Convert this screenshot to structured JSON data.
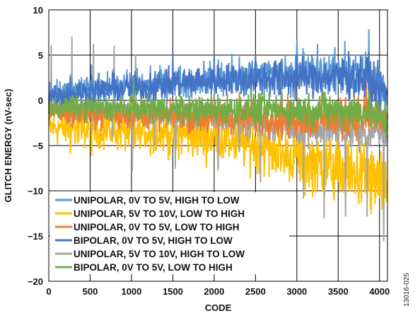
{
  "chart_data": {
    "type": "line",
    "figure_id": "13016-025",
    "xlabel": "CODE",
    "ylabel": "GLITCH ENERGY (nV-sec)",
    "xlim": [
      0,
      4096
    ],
    "ylim": [
      -20,
      10
    ],
    "x_ticks": [
      0,
      500,
      1000,
      1500,
      2000,
      2500,
      3000,
      3500,
      4000
    ],
    "y_ticks": [
      -20,
      -15,
      -10,
      -5,
      0,
      5,
      10
    ],
    "grid": true,
    "legend_position": "bottom-left",
    "x_sample": [
      0,
      256,
      512,
      768,
      1024,
      1280,
      1536,
      1792,
      2048,
      2304,
      2560,
      2816,
      3072,
      3328,
      3584,
      3840,
      4095
    ],
    "series": [
      {
        "name": "UNIPOLAR, 0V TO 5V, HIGH TO LOW",
        "color": "#5B9BD5",
        "values": [
          0.5,
          1.0,
          1.2,
          1.5,
          1.6,
          1.8,
          2.0,
          2.2,
          2.4,
          2.5,
          2.6,
          2.8,
          3.0,
          3.0,
          3.1,
          3.0,
          0.5
        ],
        "peaks": [
          [
            3000,
            6.5
          ],
          [
            3250,
            6.2
          ],
          [
            3580,
            6.5
          ],
          [
            3870,
            7.8
          ]
        ]
      },
      {
        "name": "UNIPOLAR, 5V TO 10V, LOW TO HIGH",
        "color": "#FFC000",
        "values": [
          -3.0,
          -3.0,
          -3.2,
          -3.2,
          -3.4,
          -3.5,
          -3.6,
          -3.8,
          -4.0,
          -4.5,
          -5.0,
          -5.8,
          -6.5,
          -7.0,
          -7.8,
          -8.5,
          -9.5
        ],
        "troughs": [
          [
            3100,
            -10.5
          ],
          [
            3450,
            -11.0
          ],
          [
            3900,
            -12.5
          ],
          [
            4050,
            -13.5
          ]
        ]
      },
      {
        "name": "UNIPOLAR, 0V TO 5V, LOW TO HIGH",
        "color": "#ED7D31",
        "values": [
          -1.0,
          -1.5,
          -1.5,
          -1.6,
          -1.6,
          -1.7,
          -1.7,
          -1.8,
          -1.8,
          -1.9,
          -1.9,
          -2.0,
          -2.0,
          -2.0,
          -2.1,
          -1.5,
          -2.0
        ],
        "peaks": [
          [
            3880,
            2.0
          ]
        ]
      },
      {
        "name": "BIPOLAR, 0V TO 5V, HIGH TO LOW",
        "color": "#4472C4",
        "values": [
          0.6,
          0.8,
          1.0,
          1.2,
          1.4,
          1.6,
          1.8,
          2.0,
          2.2,
          2.3,
          2.4,
          2.5,
          2.5,
          2.6,
          2.6,
          2.5,
          0.5
        ],
        "peaks": [
          [
            1500,
            5.2
          ],
          [
            2000,
            5.2
          ],
          [
            2500,
            5.0
          ],
          [
            3000,
            5.0
          ]
        ]
      },
      {
        "name": "UNIPOLAR, 5V TO 10V, HIGH TO LOW",
        "color": "#A5A5A5",
        "values": [
          -1.0,
          -1.0,
          -1.2,
          -1.2,
          -1.4,
          -1.5,
          -1.6,
          -1.8,
          -2.0,
          -2.2,
          -2.5,
          -2.8,
          -3.0,
          -3.2,
          -3.4,
          -3.5,
          -4.0
        ],
        "peaks": [
          [
            30,
            6.0
          ],
          [
            280,
            7.0
          ],
          [
            540,
            6.2
          ],
          [
            790,
            6.0
          ],
          [
            1050,
            5.0
          ]
        ],
        "troughs": [
          [
            1010,
            -7.7
          ],
          [
            1530,
            -7.5
          ],
          [
            2050,
            -7.5
          ],
          [
            2560,
            -9.0
          ],
          [
            3080,
            -10.8
          ],
          [
            3330,
            -13.0
          ],
          [
            3590,
            -12.8
          ],
          [
            3850,
            -12.8
          ],
          [
            4050,
            -15.5
          ]
        ]
      },
      {
        "name": "BIPOLAR, 0V TO 5V, LOW TO HIGH",
        "color": "#70AD47",
        "values": [
          -0.8,
          -0.8,
          -0.8,
          -0.9,
          -0.9,
          -0.9,
          -1.0,
          -1.0,
          -1.0,
          -1.0,
          -1.0,
          -1.1,
          -1.1,
          -1.1,
          -1.2,
          -1.2,
          -2.5
        ]
      }
    ]
  }
}
